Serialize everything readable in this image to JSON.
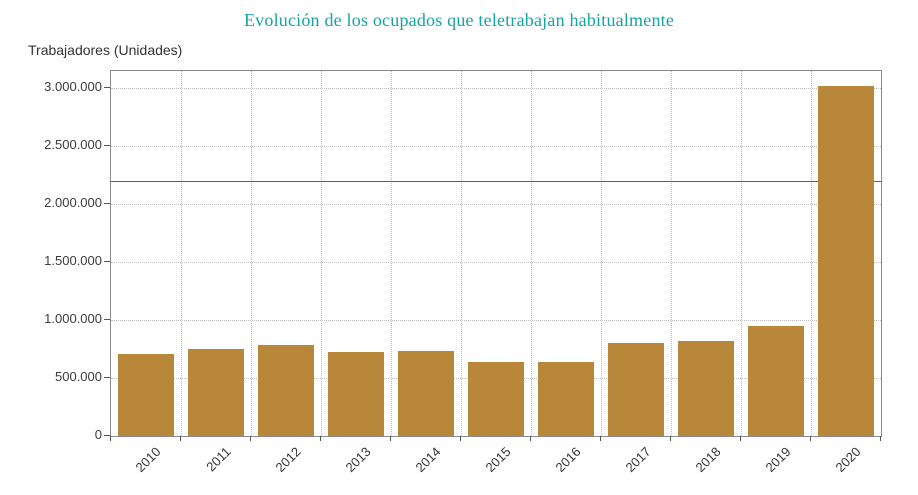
{
  "chart_data": {
    "type": "bar",
    "title": "Evolución de los ocupados que teletrabajan habitualmente",
    "xlabel": "",
    "ylabel": "Trabajadores (Unidades)",
    "categories": [
      "2010",
      "2011",
      "2012",
      "2013",
      "2014",
      "2015",
      "2016",
      "2017",
      "2018",
      "2019",
      "2020"
    ],
    "values": [
      710000,
      750000,
      790000,
      725000,
      735000,
      640000,
      640000,
      800000,
      820000,
      950000,
      3020000
    ],
    "ylim": [
      0,
      3150000
    ],
    "yticks": [
      0,
      500000,
      1000000,
      1500000,
      2000000,
      2500000,
      3000000
    ],
    "ytick_labels": [
      "0",
      "500.000",
      "1.000.000",
      "1.500.000",
      "2.000.000",
      "2.500.000",
      "3.000.000"
    ],
    "reference_line": 2200000,
    "grid": true,
    "legend": "none"
  },
  "colors": {
    "title": "#15a3a6",
    "bar": "#b8873a",
    "grid": "#bdbdbd",
    "axis": "#8a8a8a",
    "reference_line": "#5f5f5f",
    "tick_text": "#3c3c3c"
  }
}
